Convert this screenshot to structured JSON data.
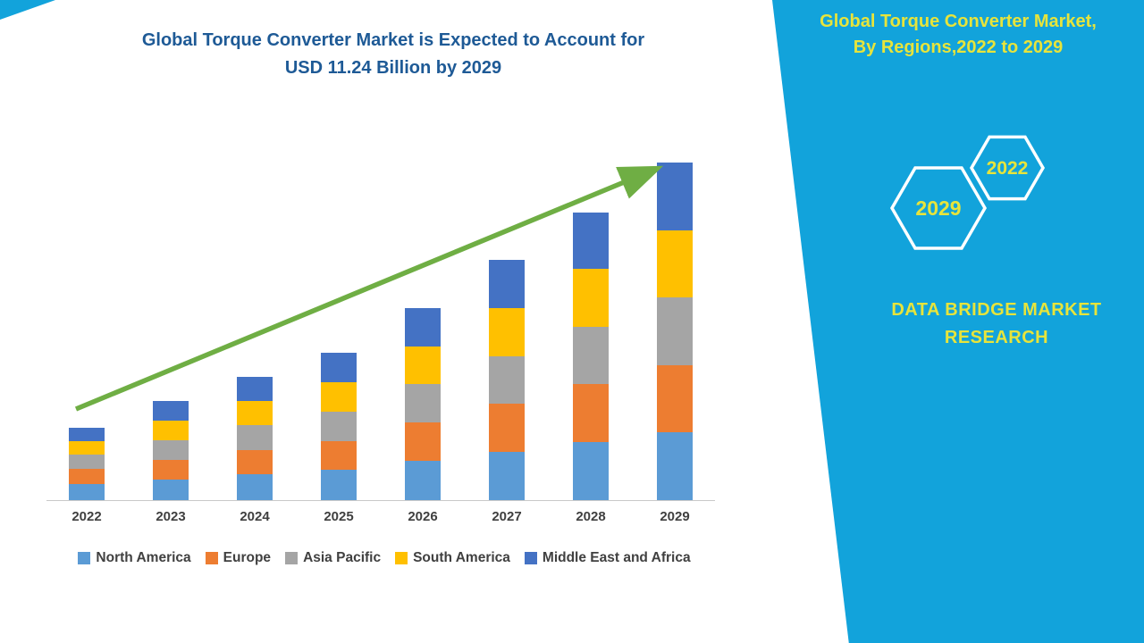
{
  "figure": {
    "title_lines": [
      "Global Torque Converter Market is Expected to Account for",
      "USD 11.24 Billion by 2029"
    ],
    "title_color": "#1E5A96"
  },
  "side_panel": {
    "heading_lines": [
      "Global Torque Converter Market,",
      "By Regions,2022 to 2029"
    ],
    "hexagons": [
      {
        "label": "2029"
      },
      {
        "label": "2022"
      }
    ],
    "brand_lines": [
      "DATA BRIDGE MARKET",
      "RESEARCH"
    ],
    "bg_color": "#12A3DB",
    "accent_color": "#E7E43B",
    "hex_outline_color": "#ffffff"
  },
  "chart_data": {
    "type": "bar",
    "stacked": true,
    "title": "Global Torque Converter Market is Expected to Account for USD 11.24 Billion by 2029",
    "categories": [
      "2022",
      "2023",
      "2024",
      "2025",
      "2026",
      "2027",
      "2028",
      "2029"
    ],
    "series": [
      {
        "name": "North America",
        "color": "#5B9BD5",
        "values": [
          0.55,
          0.7,
          0.85,
          1.0,
          1.3,
          1.6,
          1.95,
          2.25
        ]
      },
      {
        "name": "Europe",
        "color": "#ED7D31",
        "values": [
          0.5,
          0.65,
          0.82,
          0.98,
          1.28,
          1.6,
          1.92,
          2.25
        ]
      },
      {
        "name": "Asia Pacific",
        "color": "#A5A5A5",
        "values": [
          0.48,
          0.66,
          0.82,
          0.98,
          1.28,
          1.6,
          1.92,
          2.25
        ]
      },
      {
        "name": "South America",
        "color": "#FFC000",
        "values": [
          0.45,
          0.65,
          0.8,
          0.97,
          1.27,
          1.6,
          1.92,
          2.25
        ]
      },
      {
        "name": "Middle East and Africa",
        "color": "#4472C4",
        "values": [
          0.42,
          0.64,
          0.81,
          0.97,
          1.27,
          1.6,
          1.89,
          2.24
        ]
      }
    ],
    "totals": [
      2.4,
      3.3,
      4.1,
      4.9,
      6.4,
      8.0,
      9.6,
      11.24
    ],
    "unit": "USD Billion",
    "ylim": [
      0,
      12.5
    ],
    "grid": false,
    "legend_position": "bottom",
    "trend_arrow": true,
    "trend_color": "#6FAE44"
  }
}
